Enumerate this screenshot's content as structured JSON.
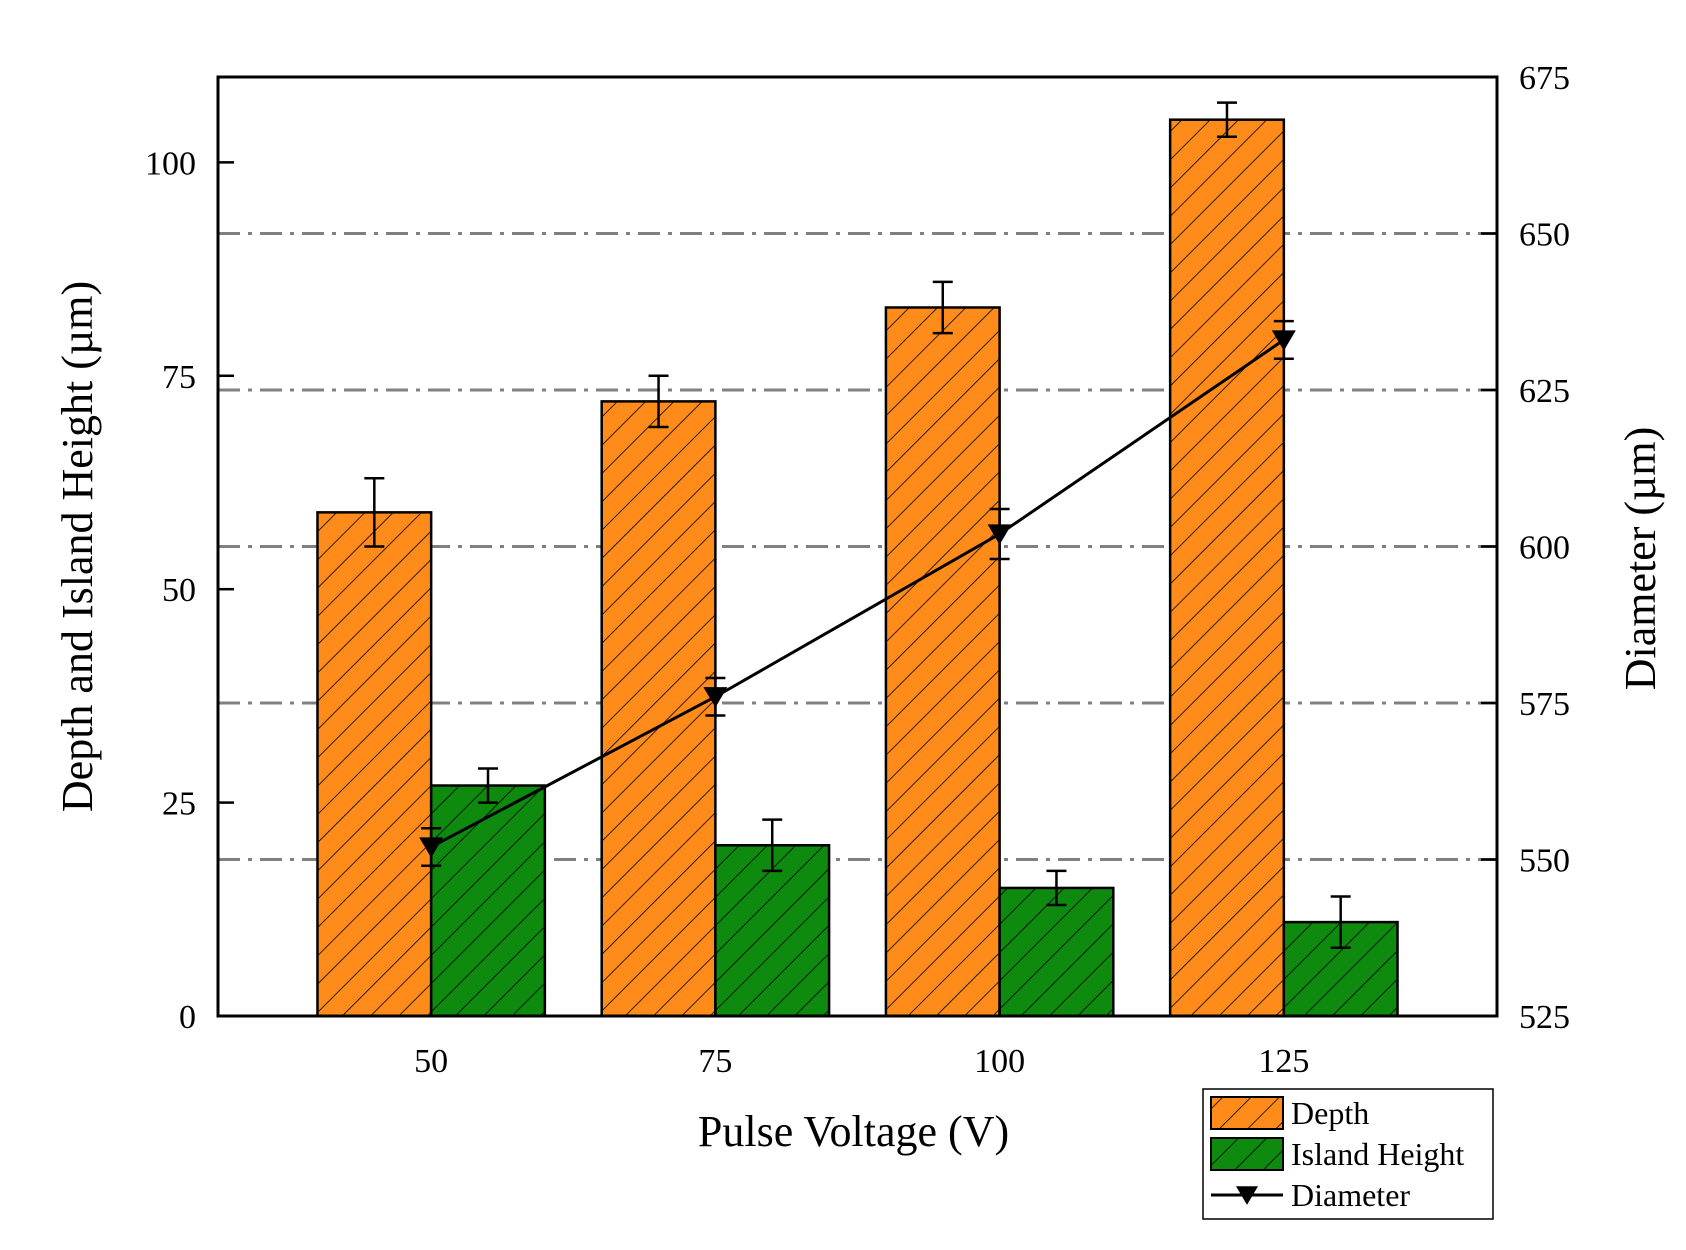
{
  "chart_data": {
    "type": "bar",
    "xlabel": "Pulse Voltage (V)",
    "ylabel": "Depth and Island Height (µm)",
    "y2label": "Diameter (µm)",
    "categories": [
      "50",
      "75",
      "100",
      "125"
    ],
    "ylim": [
      0,
      110
    ],
    "y_ticks": [
      0,
      25,
      50,
      75,
      100
    ],
    "y2lim": [
      525,
      675
    ],
    "y2_ticks": [
      525,
      550,
      575,
      600,
      625,
      650,
      675
    ],
    "series": [
      {
        "name": "Depth",
        "kind": "bar",
        "axis": "left",
        "color": "#ff8c1a",
        "values": [
          59,
          72,
          83,
          105
        ],
        "errors": [
          4,
          3,
          3,
          2
        ]
      },
      {
        "name": "Island Height",
        "kind": "bar",
        "axis": "left",
        "color": "#0e8a0e",
        "values": [
          27,
          20,
          15,
          11
        ],
        "errors": [
          2,
          3,
          2,
          3
        ]
      },
      {
        "name": "Diameter",
        "kind": "line",
        "marker": "down-triangle",
        "axis": "right",
        "color": "#000000",
        "values": [
          552,
          576,
          602,
          633
        ],
        "errors": [
          3,
          3,
          4,
          3
        ]
      }
    ],
    "gridlines_right_axis": [
      550,
      575,
      600,
      625,
      650
    ],
    "grid_style": "dash-dot gray",
    "legend_position": "bottom-right"
  }
}
